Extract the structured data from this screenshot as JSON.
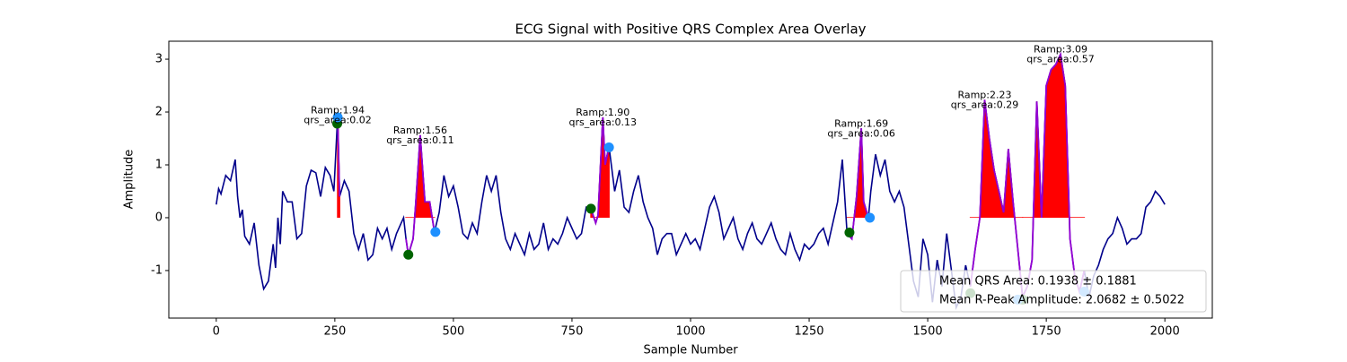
{
  "chart_data": {
    "type": "line",
    "title": "ECG Signal with Positive QRS Complex Area Overlay",
    "xlabel": "Sample Number",
    "ylabel": "Amplitude",
    "xlim": [
      -100,
      2100
    ],
    "ylim": [
      -1.9,
      3.34
    ],
    "xticks": [
      0,
      250,
      500,
      750,
      1000,
      1250,
      1500,
      1750,
      2000
    ],
    "yticks": [
      -1,
      0,
      1,
      2,
      3
    ],
    "signal": {
      "color": "#00008b",
      "x": [
        0,
        5,
        10,
        20,
        30,
        40,
        45,
        50,
        55,
        60,
        70,
        80,
        90,
        100,
        110,
        120,
        125,
        130,
        135,
        140,
        150,
        160,
        170,
        180,
        190,
        200,
        210,
        220,
        230,
        240,
        248,
        256,
        260,
        270,
        280,
        290,
        300,
        310,
        320,
        330,
        340,
        350,
        360,
        370,
        380,
        390,
        395,
        400,
        405,
        415,
        420,
        430,
        440,
        450,
        460,
        470,
        480,
        490,
        500,
        510,
        520,
        530,
        540,
        550,
        560,
        570,
        580,
        590,
        600,
        610,
        620,
        630,
        640,
        650,
        660,
        670,
        680,
        690,
        700,
        710,
        720,
        730,
        740,
        750,
        760,
        770,
        780,
        790,
        800,
        805,
        815,
        820,
        828,
        840,
        850,
        860,
        870,
        880,
        890,
        900,
        910,
        920,
        930,
        940,
        950,
        960,
        970,
        980,
        990,
        1000,
        1010,
        1020,
        1030,
        1040,
        1050,
        1060,
        1070,
        1080,
        1090,
        1100,
        1110,
        1120,
        1130,
        1140,
        1150,
        1160,
        1170,
        1180,
        1190,
        1200,
        1210,
        1220,
        1230,
        1240,
        1250,
        1260,
        1270,
        1280,
        1290,
        1300,
        1310,
        1320,
        1330,
        1340,
        1350,
        1360,
        1365,
        1375,
        1380,
        1390,
        1400,
        1410,
        1420,
        1430,
        1440,
        1450,
        1460,
        1470,
        1480,
        1490,
        1500,
        1510,
        1520,
        1530,
        1540,
        1550,
        1560,
        1570,
        1580,
        1590,
        1600,
        1610,
        1620,
        1630,
        1640,
        1650,
        1660,
        1670,
        1680,
        1690,
        1700,
        1710,
        1720,
        1730,
        1740,
        1750,
        1760,
        1770,
        1780,
        1790,
        1800,
        1810,
        1820,
        1830,
        1840,
        1850,
        1860,
        1870,
        1880,
        1890,
        1900,
        1910,
        1920,
        1930,
        1940,
        1950,
        1960,
        1970,
        1980,
        1990,
        2000
      ],
      "values": [
        0.25,
        0.55,
        0.45,
        0.8,
        0.7,
        1.1,
        0.4,
        0,
        0.15,
        -0.35,
        -0.5,
        -0.1,
        -0.9,
        -1.35,
        -1.2,
        -0.5,
        -0.95,
        0,
        -0.5,
        0.5,
        0.3,
        0.3,
        -0.4,
        -0.3,
        0.6,
        0.9,
        0.85,
        0.4,
        0.95,
        0.8,
        0.5,
        1.94,
        0.4,
        0.7,
        0.5,
        -0.3,
        -0.6,
        -0.3,
        -0.8,
        -0.7,
        -0.2,
        -0.4,
        -0.2,
        -0.6,
        -0.3,
        -0.1,
        0,
        -0.4,
        -0.7,
        -0.4,
        0.2,
        1.56,
        0.3,
        0.3,
        -0.27,
        0.1,
        0.8,
        0.4,
        0.6,
        0.2,
        -0.3,
        -0.4,
        -0.1,
        -0.3,
        0.3,
        0.8,
        0.5,
        0.8,
        0.1,
        -0.4,
        -0.6,
        -0.3,
        -0.5,
        -0.7,
        -0.3,
        -0.6,
        -0.5,
        -0.1,
        -0.6,
        -0.4,
        -0.5,
        -0.3,
        0,
        -0.2,
        -0.4,
        -0.3,
        0.2,
        0.17,
        -0.1,
        0.05,
        1.9,
        1,
        1.35,
        0.5,
        0.9,
        0.2,
        0.1,
        0.5,
        0.8,
        0.3,
        0,
        -0.2,
        -0.7,
        -0.4,
        -0.3,
        -0.3,
        -0.7,
        -0.5,
        -0.3,
        -0.5,
        -0.4,
        -0.6,
        -0.2,
        0.2,
        0.4,
        0.1,
        -0.4,
        -0.2,
        0,
        -0.4,
        -0.6,
        -0.3,
        -0.1,
        -0.4,
        -0.5,
        -0.3,
        -0.1,
        -0.4,
        -0.6,
        -0.7,
        -0.3,
        -0.6,
        -0.8,
        -0.5,
        -0.6,
        -0.5,
        -0.3,
        -0.2,
        -0.5,
        -0.1,
        0.3,
        1.1,
        -0.3,
        -0.4,
        0.4,
        1.69,
        0.3,
        0,
        0.5,
        1.2,
        0.8,
        1.1,
        0.5,
        0.3,
        0.5,
        0.2,
        -0.5,
        -1.2,
        -1.5,
        -0.4,
        -0.7,
        -1.6,
        -0.8,
        -1.3,
        -0.3,
        -1,
        -1.7,
        -1.5,
        -0.9,
        -1.3,
        -0.6,
        0,
        2.23,
        1.5,
        0.9,
        0.5,
        0.1,
        1.3,
        0.3,
        -0.6,
        -1.5,
        -1.3,
        -0.8,
        2.2,
        0,
        2.5,
        2.8,
        2.9,
        3.09,
        2.5,
        -0.4,
        -1.1,
        -1.4,
        -1,
        -1.5,
        -1.1,
        -0.9,
        -0.6,
        -0.4,
        -0.3,
        0,
        -0.2,
        -0.5,
        -0.4,
        -0.4,
        -0.3,
        0.2,
        0.3,
        0.5,
        0.4,
        0.25
      ]
    },
    "qrs": {
      "color": "#9400d3",
      "fill": "#ff0000",
      "windows": [
        [
          250,
          262
        ],
        [
          400,
          462
        ],
        [
          790,
          828
        ],
        [
          1330,
          1378
        ],
        [
          1590,
          1700
        ],
        [
          1700,
          1830
        ]
      ]
    },
    "onsets": {
      "color": "#006400",
      "x": [
        255,
        405,
        790,
        1335,
        1590,
        1700
      ],
      "values": [
        1.78,
        -0.7,
        0.17,
        -0.28,
        -1.43,
        -1.55
      ]
    },
    "offsets": {
      "color": "#1e90ff",
      "x": [
        256,
        462,
        828,
        1378,
        1690,
        1830
      ],
      "values": [
        1.9,
        -0.27,
        1.33,
        0.0,
        -1.55,
        -1.4
      ]
    },
    "annotations": [
      {
        "lines": [
          "Ramp:1.94",
          "qrs_area:0.02"
        ],
        "x": 256,
        "y": 1.94
      },
      {
        "lines": [
          "Ramp:1.56",
          "qrs_area:0.11"
        ],
        "x": 430,
        "y": 1.56
      },
      {
        "lines": [
          "Ramp:1.90",
          "qrs_area:0.13"
        ],
        "x": 815,
        "y": 1.9
      },
      {
        "lines": [
          "Ramp:1.69",
          "qrs_area:0.06"
        ],
        "x": 1360,
        "y": 1.69
      },
      {
        "lines": [
          "Ramp:2.23",
          "qrs_area:0.29"
        ],
        "x": 1620,
        "y": 2.23
      },
      {
        "lines": [
          "Ramp:3.09",
          "qrs_area:0.57"
        ],
        "x": 1780,
        "y": 3.09
      }
    ],
    "legend": {
      "loc": "lower right",
      "entries": [
        "Mean QRS Area: 0.1938 ± 0.1881",
        "Mean R-Peak Amplitude: 2.0682 ± 0.5022"
      ]
    }
  }
}
